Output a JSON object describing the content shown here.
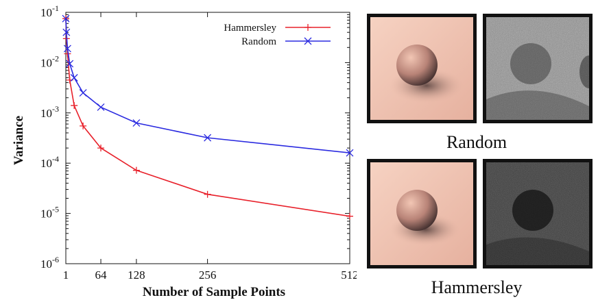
{
  "chart_data": {
    "type": "line",
    "xlabel": "Number of Sample Points",
    "ylabel": "Variance",
    "yscale": "log",
    "xlim": [
      1,
      512
    ],
    "ylim": [
      1e-06,
      0.1
    ],
    "grid": false,
    "legend_position": "top-right",
    "x_ticks": [
      {
        "value": 1,
        "label": "1"
      },
      {
        "value": 64,
        "label": "64"
      },
      {
        "value": 128,
        "label": "128"
      },
      {
        "value": 256,
        "label": "256"
      },
      {
        "value": 512,
        "label": "512"
      }
    ],
    "y_ticks": [
      {
        "value": 1e-06,
        "base": "10",
        "exp": "-6"
      },
      {
        "value": 1e-05,
        "base": "10",
        "exp": "-5"
      },
      {
        "value": 0.0001,
        "base": "10",
        "exp": "-4"
      },
      {
        "value": 0.001,
        "base": "10",
        "exp": "-3"
      },
      {
        "value": 0.01,
        "base": "10",
        "exp": "-2"
      },
      {
        "value": 0.1,
        "base": "10",
        "exp": "-1"
      }
    ],
    "series": [
      {
        "name": "Hammersley",
        "color": "#e8202a",
        "marker": "plus",
        "x": [
          1,
          2,
          4,
          8,
          16,
          32,
          64,
          128,
          256,
          512
        ],
        "y": [
          0.075,
          0.03,
          0.015,
          0.0045,
          0.0014,
          0.00055,
          0.0002,
          7.2e-05,
          2.4e-05,
          8.8e-06
        ]
      },
      {
        "name": "Random",
        "color": "#2a2ae0",
        "marker": "cross",
        "x": [
          1,
          2,
          4,
          8,
          16,
          32,
          64,
          128,
          256,
          512
        ],
        "y": [
          0.075,
          0.04,
          0.019,
          0.0095,
          0.005,
          0.0025,
          0.0013,
          0.00063,
          0.00032,
          0.00016
        ]
      }
    ]
  },
  "figures": {
    "random_caption": "Random",
    "hammersley_caption": "Hammersley"
  }
}
